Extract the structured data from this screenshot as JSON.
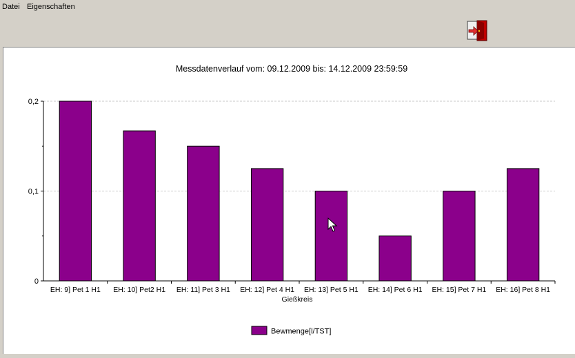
{
  "menu": {
    "file": "Datei",
    "properties": "Eigenschaften"
  },
  "toolbar": {
    "exit_icon": "exit-door-icon"
  },
  "chart_data": {
    "type": "bar",
    "title": "Messdatenverlauf vom: 09.12.2009 bis: 14.12.2009 23:59:59",
    "xlabel": "Gießkreis",
    "ylabel": "",
    "ylim": [
      0,
      0.2
    ],
    "yticks": [
      {
        "value": 0,
        "label": "0"
      },
      {
        "value": 0.1,
        "label": "0,1"
      },
      {
        "value": 0.2,
        "label": "0,2"
      }
    ],
    "grid": true,
    "legend_position": "bottom",
    "categories": [
      "EH: 9] Pet 1 H1",
      "EH: 10] Pet2 H1",
      "EH: 11] Pet 3 H1",
      "EH: 12] Pet 4 H1",
      "EH: 13] Pet 5 H1",
      "EH: 14] Pet 6 H1",
      "EH: 15] Pet 7 H1",
      "EH: 16] Pet 8 H1"
    ],
    "series": [
      {
        "name": "Bewmenge[l/TST]",
        "color": "#8b008b",
        "values": [
          0.2,
          0.167,
          0.15,
          0.125,
          0.1,
          0.05,
          0.1,
          0.125
        ]
      }
    ]
  }
}
